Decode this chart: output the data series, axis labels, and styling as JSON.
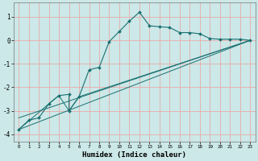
{
  "xlabel": "Humidex (Indice chaleur)",
  "bg_color": "#cce8e8",
  "line_color": "#1a7070",
  "grid_color": "#e8aaaa",
  "xlim": [
    -0.5,
    23.5
  ],
  "ylim": [
    -4.3,
    1.6
  ],
  "xticks": [
    0,
    1,
    2,
    3,
    4,
    5,
    6,
    7,
    8,
    9,
    10,
    11,
    12,
    13,
    14,
    15,
    16,
    17,
    18,
    19,
    20,
    21,
    22,
    23
  ],
  "yticks": [
    -4,
    -3,
    -2,
    -1,
    0,
    1
  ],
  "line1_x": [
    0,
    1,
    2,
    3,
    4,
    5,
    5,
    6,
    7,
    8,
    9,
    10,
    11,
    12,
    13,
    14,
    15,
    16,
    17,
    18,
    19,
    20,
    21,
    22,
    23
  ],
  "line1_y": [
    -3.8,
    -3.4,
    -3.3,
    -2.7,
    -2.35,
    -2.3,
    -3.0,
    -2.4,
    -1.25,
    -1.15,
    -0.05,
    0.38,
    0.82,
    1.2,
    0.62,
    0.58,
    0.55,
    0.33,
    0.33,
    0.28,
    0.08,
    0.05,
    0.05,
    0.05,
    0.0
  ],
  "line2_x": [
    0,
    3,
    4,
    5,
    6,
    23
  ],
  "line2_y": [
    -3.8,
    -2.7,
    -2.35,
    -3.0,
    -2.4,
    0.0
  ],
  "line3_x": [
    0,
    23
  ],
  "line3_y": [
    -3.8,
    0.0
  ],
  "line4_x": [
    0,
    23
  ],
  "line4_y": [
    -3.3,
    0.0
  ]
}
